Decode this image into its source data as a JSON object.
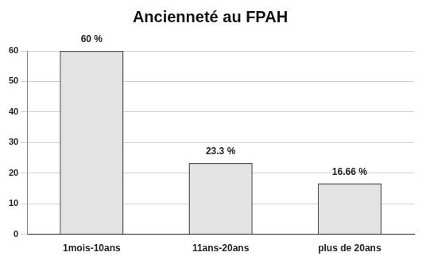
{
  "chart_data": {
    "type": "bar",
    "title": "Ancienneté au FPAH",
    "categories": [
      "1mois-10ans",
      "11ans-20ans",
      "plus de 20ans"
    ],
    "values": [
      60,
      23.3,
      16.66
    ],
    "value_labels": [
      "60 %",
      "23.3 %",
      "16.66 %"
    ],
    "data_labels": true,
    "color": "#e3e3e3",
    "ylim": [
      0,
      60
    ],
    "yticks": [
      0,
      10,
      20,
      30,
      40,
      50,
      60
    ],
    "grid": true
  }
}
